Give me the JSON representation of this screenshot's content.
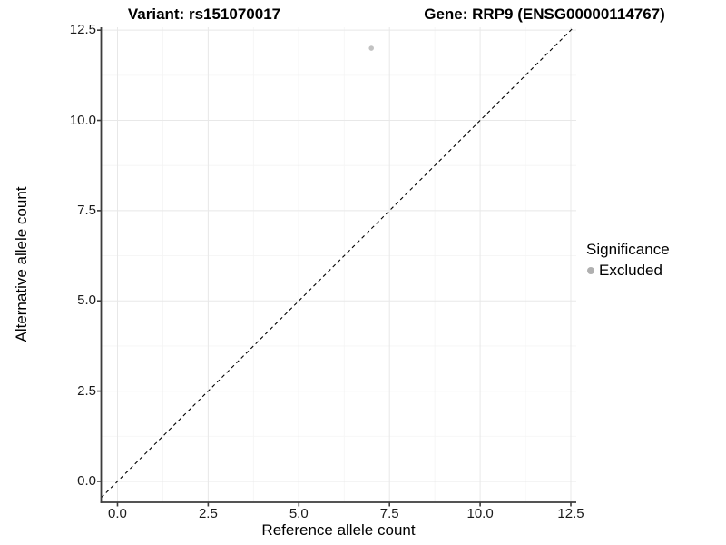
{
  "titles": {
    "variant": "Variant: rs151070017",
    "gene": "Gene: RRP9 (ENSG00000114767)"
  },
  "chart_data": {
    "type": "scatter",
    "title_left": "Variant: rs151070017",
    "title_right": "Gene: RRP9 (ENSG00000114767)",
    "xlabel": "Reference allele count",
    "ylabel": "Alternative allele count",
    "x_ticks": [
      "0.0",
      "2.5",
      "5.0",
      "7.5",
      "10.0",
      "12.5"
    ],
    "y_ticks": [
      "0.0",
      "2.5",
      "5.0",
      "7.5",
      "10.0",
      "12.5"
    ],
    "tick_values": [
      0,
      2.5,
      5,
      7.5,
      10,
      12.5
    ],
    "minor_tick_values": [
      1.25,
      3.75,
      6.25,
      8.75,
      11.25
    ],
    "xlim": [
      -0.45,
      12.65
    ],
    "ylim": [
      -0.58,
      12.58
    ],
    "grid": true,
    "points": [
      {
        "x": 7,
        "y": 12,
        "significance": "Excluded"
      }
    ],
    "reference_line": {
      "type": "identity y=x",
      "style": "dashed",
      "color": "#000000"
    },
    "legend": {
      "position": "right",
      "title": "Significance",
      "entries": [
        {
          "label": "Excluded",
          "color": "#bebebe"
        }
      ]
    }
  },
  "colors": {
    "background": "#ffffff",
    "point": "#c2c2c2",
    "legend_dot": "#b0b0b0",
    "axis": "#3c3c3c",
    "grid_major": "#e8e8e8",
    "grid_minor": "#f4f4f4",
    "dashed_line": "#000000",
    "text": "#000000"
  }
}
